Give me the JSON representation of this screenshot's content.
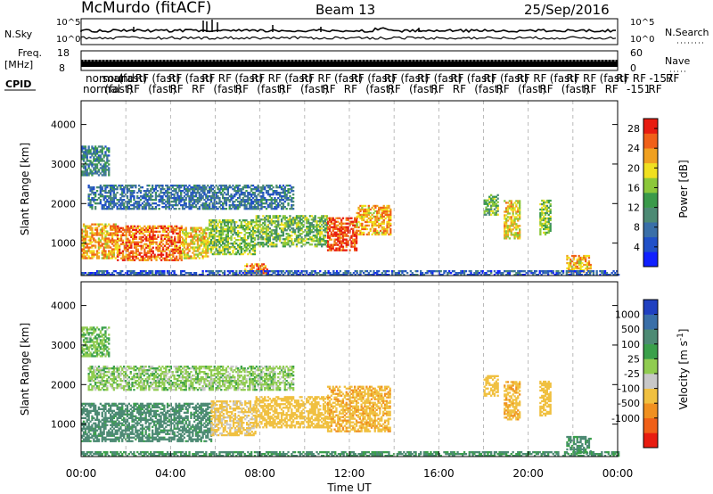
{
  "header": {
    "station": "McMurdo (fitACF)",
    "beam": "Beam 13",
    "date": "25/Sep/2016"
  },
  "params": {
    "nsky_label": "N.Sky",
    "nsearch_label": "N.Search",
    "freq_label_top": "Freq.",
    "freq_label_unit": "[MHz]",
    "nave_label": "Nave",
    "cpid_label": "CPID",
    "nsky_ticks": [
      "10^5",
      "10^0"
    ],
    "nsearch_ticks": [
      "10^5",
      "10^0"
    ],
    "freq_ticks": [
      "18",
      "8"
    ],
    "nave_ticks": [
      "60",
      "0"
    ],
    "cpid_row1": [
      "normal",
      "sound",
      "(fast)",
      "RF",
      "(fast)",
      "RF",
      "(fast)",
      "RF",
      "RF",
      "(fast)",
      "RF",
      "RF",
      "(fast)",
      "RF",
      "RF",
      "(fast)",
      "RF",
      "(fast)",
      "RF",
      "(fast)",
      "RF",
      "(fast)",
      "RF",
      "(fast)",
      "RF",
      "(fast)",
      "RF",
      "RF",
      "(fast)",
      "RF",
      "RF",
      "(fast)",
      "RF",
      "RF",
      "-157",
      "RF"
    ],
    "cpid_row2": [
      "normal",
      "(fast)",
      "RF",
      "(fast)",
      "RF",
      "RF",
      "(fast)",
      "RF",
      "(fast)",
      "RF",
      "(fast)",
      "RF",
      "RF",
      "(fast)",
      "RF",
      "(fast)",
      "RF",
      "RF",
      "(fast)",
      "RF",
      "(fast)",
      "RF",
      "(fast)",
      "RF",
      "RF",
      "-151",
      "RF"
    ]
  },
  "chart_data": [
    {
      "type": "heatmap",
      "name": "Power",
      "xlabel": "",
      "ylabel": "Slant Range [km]",
      "xlim": [
        0,
        24
      ],
      "ylim": [
        180,
        4600
      ],
      "yticks": [
        "4000",
        "3000",
        "2000",
        "1000"
      ],
      "ytick_values": [
        4000,
        3000,
        2000,
        1000
      ],
      "colorbar": {
        "label": "Power [dB]",
        "ticks": [
          "28",
          "24",
          "20",
          "16",
          "12",
          "8",
          "4"
        ],
        "tick_values": [
          28,
          24,
          20,
          16,
          12,
          8,
          4
        ],
        "range": [
          0,
          30
        ],
        "colors": [
          "#1020ff",
          "#2050c8",
          "#3a6fa8",
          "#4d8a74",
          "#3a9a4a",
          "#8cc83a",
          "#f0e020",
          "#f0a020",
          "#f06018",
          "#e81c10"
        ]
      },
      "regions": [
        {
          "t0": 0.0,
          "t1": 1.6,
          "r0": 600,
          "r1": 1500,
          "v": 22
        },
        {
          "t0": 1.6,
          "t1": 4.5,
          "r0": 550,
          "r1": 1450,
          "v": 25
        },
        {
          "t0": 4.5,
          "t1": 5.7,
          "r0": 600,
          "r1": 1400,
          "v": 20
        },
        {
          "t0": 5.7,
          "t1": 7.8,
          "r0": 700,
          "r1": 1600,
          "v": 16
        },
        {
          "t0": 7.8,
          "t1": 11.0,
          "r0": 900,
          "r1": 1700,
          "v": 15
        },
        {
          "t0": 11.0,
          "t1": 12.3,
          "r0": 800,
          "r1": 1650,
          "v": 27
        },
        {
          "t0": 12.3,
          "t1": 13.8,
          "r0": 1200,
          "r1": 1950,
          "v": 22
        },
        {
          "t0": 0.3,
          "t1": 9.5,
          "r0": 1850,
          "r1": 2450,
          "v": 8
        },
        {
          "t0": 0.0,
          "t1": 1.2,
          "r0": 2700,
          "r1": 3450,
          "v": 10
        },
        {
          "t0": 18.0,
          "t1": 18.6,
          "r0": 1700,
          "r1": 2200,
          "v": 14
        },
        {
          "t0": 18.9,
          "t1": 19.6,
          "r0": 1100,
          "r1": 2050,
          "v": 20
        },
        {
          "t0": 20.5,
          "t1": 21.0,
          "r0": 1200,
          "r1": 2100,
          "v": 16
        },
        {
          "t0": 21.7,
          "t1": 22.8,
          "r0": 250,
          "r1": 700,
          "v": 22
        },
        {
          "t0": 7.3,
          "t1": 8.3,
          "r0": 220,
          "r1": 480,
          "v": 24
        },
        {
          "t0": 0.0,
          "t1": 24.0,
          "r0": 180,
          "r1": 300,
          "v": 6
        }
      ]
    },
    {
      "type": "heatmap",
      "name": "Velocity",
      "xlabel": "Time UT",
      "ylabel": "Slant Range [km]",
      "xlim": [
        0,
        24
      ],
      "ylim": [
        180,
        4600
      ],
      "xticks": [
        "00:00",
        "04:00",
        "08:00",
        "12:00",
        "16:00",
        "20:00",
        "00:00"
      ],
      "xtick_values": [
        0,
        4,
        8,
        12,
        16,
        20,
        24
      ],
      "yticks": [
        "4000",
        "3000",
        "2000",
        "1000"
      ],
      "ytick_values": [
        4000,
        3000,
        2000,
        1000
      ],
      "colorbar": {
        "label": "Velocity [m s",
        "label_sup": "-1",
        "label_end": "]",
        "ticks": [
          "1000",
          "500",
          "100",
          "25",
          "-25",
          "-100",
          "-500",
          "-1000"
        ],
        "tick_values": [
          1000,
          500,
          100,
          25,
          -25,
          -100,
          -500,
          -1000
        ],
        "colors": [
          "#2040c0",
          "#3a6fa8",
          "#4d8a74",
          "#3aa04a",
          "#90cc50",
          "#c8c8c8",
          "#f0c040",
          "#f09020",
          "#f06018",
          "#e81c10"
        ]
      },
      "regions": [
        {
          "t0": 0.0,
          "t1": 5.8,
          "r0": 550,
          "r1": 1500,
          "v": 200
        },
        {
          "t0": 5.8,
          "t1": 7.8,
          "r0": 700,
          "r1": 1600,
          "v": -150
        },
        {
          "t0": 7.8,
          "t1": 11.0,
          "r0": 900,
          "r1": 1700,
          "v": -300
        },
        {
          "t0": 11.0,
          "t1": 13.8,
          "r0": 800,
          "r1": 1950,
          "v": -400
        },
        {
          "t0": 0.3,
          "t1": 9.5,
          "r0": 1850,
          "r1": 2450,
          "v": 0
        },
        {
          "t0": 0.0,
          "t1": 1.2,
          "r0": 2700,
          "r1": 3450,
          "v": 20
        },
        {
          "t0": 18.0,
          "t1": 18.6,
          "r0": 1700,
          "r1": 2200,
          "v": -300
        },
        {
          "t0": 18.9,
          "t1": 19.6,
          "r0": 1100,
          "r1": 2050,
          "v": -400
        },
        {
          "t0": 20.5,
          "t1": 21.0,
          "r0": 1200,
          "r1": 2100,
          "v": -250
        },
        {
          "t0": 21.7,
          "t1": 22.8,
          "r0": 250,
          "r1": 700,
          "v": 150
        },
        {
          "t0": 0.0,
          "t1": 24.0,
          "r0": 180,
          "r1": 300,
          "v": 120
        }
      ]
    }
  ]
}
